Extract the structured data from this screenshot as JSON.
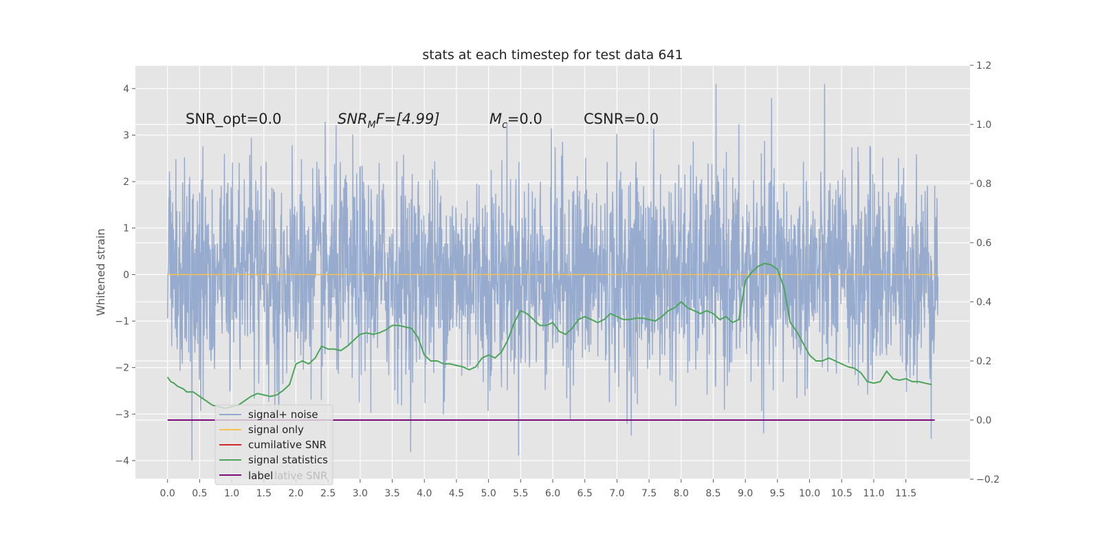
{
  "chart_data": {
    "type": "line",
    "title": "stats at each timestep for test data 641",
    "ylabel": "Whitened strain",
    "xlabel": "",
    "xlim": [
      -0.5,
      12.5
    ],
    "ylim": [
      -4.4,
      4.5
    ],
    "y2lim": [
      -0.2,
      1.2
    ],
    "grid": true,
    "legend_position": "lower-left",
    "x_ticks": [
      "0.0",
      "0.5",
      "1.0",
      "1.5",
      "2.0",
      "2.5",
      "3.0",
      "3.5",
      "4.0",
      "4.5",
      "5.0",
      "5.5",
      "6.0",
      "6.5",
      "7.0",
      "7.5",
      "8.0",
      "8.5",
      "9.0",
      "9.5",
      "10.0",
      "10.5",
      "11.0",
      "11.5"
    ],
    "y_ticks": [
      "4",
      "3",
      "2",
      "1",
      "0",
      "−1",
      "−2",
      "−3",
      "−4"
    ],
    "y_tick_values": [
      4,
      3,
      2,
      1,
      0,
      -1,
      -2,
      -3,
      -4
    ],
    "y2_ticks": [
      "1.2",
      "1.0",
      "0.8",
      "0.6",
      "0.4",
      "0.2",
      "0.0",
      "−0.2"
    ],
    "y2_tick_values": [
      1.2,
      1.0,
      0.8,
      0.6,
      0.4,
      0.2,
      0.0,
      -0.2
    ],
    "annotations": {
      "snr_opt": "SNR_opt=0.0",
      "snr_mf_base": "SNR",
      "snr_mf_sub": "M",
      "snr_mf_rest": "F=[4.99]",
      "mc_base": "M",
      "mc_sub": "c",
      "mc_rest": "=0.0",
      "csnr": "CSNR=0.0"
    },
    "legend": {
      "entries": [
        "signal+ noise",
        "signal only",
        "cumilative SNR",
        "signal statistics",
        "label"
      ],
      "ghost_text": "lative SNR"
    },
    "colors": {
      "signal_noise": "#92a8cc",
      "signal_only": "#f2c152",
      "cumulative_snr": "#d62728",
      "signal_statistics": "#4aa459",
      "label": "#7b0d7b",
      "plot_background": "#e5e5e5",
      "grid": "#ffffff"
    },
    "series": [
      {
        "name": "signal+ noise",
        "axis": "left",
        "style": "noise",
        "x_range": [
          0.0,
          12.0
        ],
        "std": 1.0,
        "points": 2400
      },
      {
        "name": "signal only",
        "axis": "left",
        "x": [
          0.0,
          12.0
        ],
        "y": [
          0.0,
          0.0
        ]
      },
      {
        "name": "signal statistics",
        "axis": "right",
        "x": [
          0.0,
          0.05,
          0.1,
          0.15,
          0.2,
          0.25,
          0.3,
          0.4,
          0.5,
          0.6,
          0.7,
          0.8,
          0.9,
          1.0,
          1.1,
          1.2,
          1.3,
          1.4,
          1.5,
          1.6,
          1.7,
          1.8,
          1.9,
          2.0,
          2.1,
          2.2,
          2.3,
          2.4,
          2.5,
          2.6,
          2.7,
          2.8,
          2.9,
          3.0,
          3.1,
          3.2,
          3.3,
          3.4,
          3.5,
          3.6,
          3.7,
          3.8,
          3.9,
          4.0,
          4.1,
          4.2,
          4.3,
          4.4,
          4.5,
          4.6,
          4.7,
          4.8,
          4.9,
          5.0,
          5.1,
          5.2,
          5.3,
          5.4,
          5.5,
          5.6,
          5.7,
          5.8,
          5.9,
          6.0,
          6.1,
          6.2,
          6.3,
          6.4,
          6.5,
          6.6,
          6.7,
          6.8,
          6.9,
          7.0,
          7.1,
          7.2,
          7.3,
          7.4,
          7.5,
          7.6,
          7.7,
          7.8,
          7.9,
          8.0,
          8.1,
          8.2,
          8.3,
          8.4,
          8.5,
          8.6,
          8.7,
          8.8,
          8.9,
          9.0,
          9.1,
          9.2,
          9.3,
          9.4,
          9.5,
          9.6,
          9.7,
          9.8,
          9.9,
          10.0,
          10.1,
          10.2,
          10.3,
          10.4,
          10.5,
          10.6,
          10.7,
          10.8,
          10.9,
          11.0,
          11.1,
          11.2,
          11.3,
          11.4,
          11.5,
          11.6,
          11.7,
          11.8,
          11.9
        ],
        "y": [
          0.145,
          0.13,
          0.125,
          0.115,
          0.11,
          0.105,
          0.095,
          0.095,
          0.08,
          0.065,
          0.05,
          0.045,
          0.04,
          0.045,
          0.05,
          0.065,
          0.08,
          0.09,
          0.085,
          0.08,
          0.085,
          0.1,
          0.12,
          0.19,
          0.2,
          0.19,
          0.21,
          0.25,
          0.24,
          0.24,
          0.235,
          0.25,
          0.27,
          0.29,
          0.295,
          0.29,
          0.295,
          0.305,
          0.32,
          0.32,
          0.315,
          0.31,
          0.28,
          0.22,
          0.2,
          0.2,
          0.19,
          0.19,
          0.185,
          0.18,
          0.17,
          0.18,
          0.21,
          0.22,
          0.21,
          0.23,
          0.27,
          0.33,
          0.37,
          0.36,
          0.34,
          0.32,
          0.32,
          0.33,
          0.3,
          0.29,
          0.31,
          0.34,
          0.35,
          0.34,
          0.33,
          0.34,
          0.36,
          0.35,
          0.34,
          0.34,
          0.345,
          0.345,
          0.34,
          0.335,
          0.35,
          0.37,
          0.38,
          0.4,
          0.38,
          0.37,
          0.36,
          0.37,
          0.36,
          0.34,
          0.35,
          0.33,
          0.34,
          0.47,
          0.5,
          0.52,
          0.53,
          0.525,
          0.51,
          0.45,
          0.33,
          0.3,
          0.26,
          0.22,
          0.2,
          0.2,
          0.21,
          0.2,
          0.19,
          0.18,
          0.175,
          0.16,
          0.13,
          0.125,
          0.13,
          0.165,
          0.14,
          0.135,
          0.14,
          0.13,
          0.13,
          0.125,
          0.12
        ]
      },
      {
        "name": "label",
        "axis": "right",
        "x": [
          0.0,
          11.95
        ],
        "y": [
          0.0,
          0.0
        ]
      }
    ]
  }
}
